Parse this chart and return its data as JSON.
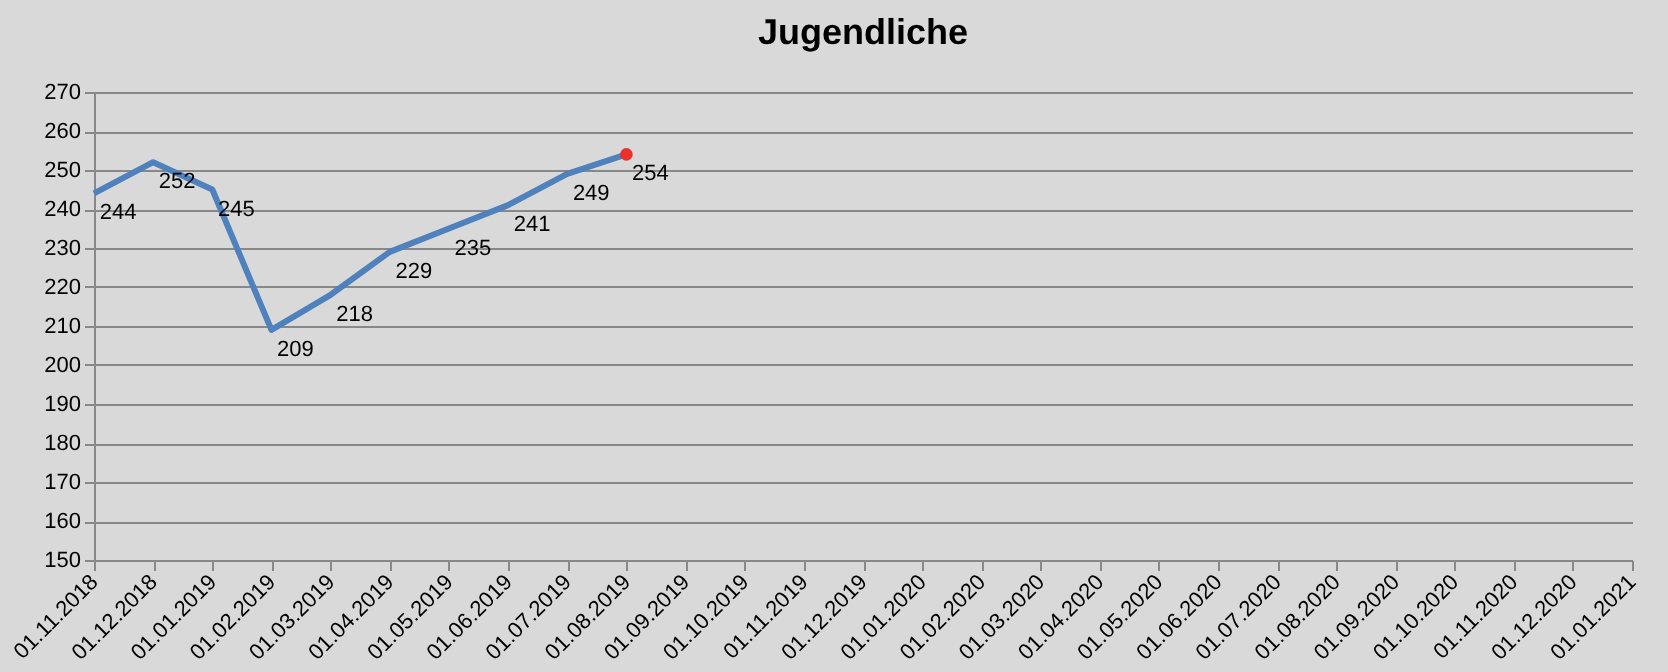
{
  "chart_data": {
    "type": "line",
    "title": "Jugendliche",
    "categories": [
      "01.11.2018",
      "01.12.2018",
      "01.01.2019",
      "01.02.2019",
      "01.03.2019",
      "01.04.2019",
      "01.05.2019",
      "01.06.2019",
      "01.07.2019",
      "01.08.2019",
      "01.09.2019",
      "01.10.2019",
      "01.11.2019",
      "01.12.2019",
      "01.01.2020",
      "01.02.2020",
      "01.03.2020",
      "01.04.2020",
      "01.05.2020",
      "01.06.2020",
      "01.07.2020",
      "01.08.2020",
      "01.09.2020",
      "01.10.2020",
      "01.11.2020",
      "01.12.2020",
      "01.01.2021"
    ],
    "series": [
      {
        "color": "#4f81bd",
        "marker": "none",
        "data_labels": true,
        "values": [
          244,
          252,
          245,
          209,
          218,
          229,
          235,
          241,
          249,
          254,
          null,
          null,
          null,
          null,
          null,
          null,
          null,
          null,
          null,
          null,
          null,
          null,
          null,
          null,
          null,
          null,
          null
        ]
      },
      {
        "type": "scatter",
        "color": "#e8322b",
        "marker": "circle",
        "values": [
          null,
          null,
          null,
          null,
          null,
          null,
          null,
          null,
          null,
          254,
          null,
          null,
          null,
          null,
          null,
          null,
          null,
          null,
          null,
          null,
          null,
          null,
          null,
          null,
          null,
          null,
          null
        ]
      }
    ],
    "ylim": [
      150,
      270
    ],
    "yticks": [
      150,
      160,
      170,
      180,
      190,
      200,
      210,
      220,
      230,
      240,
      250,
      260,
      270
    ],
    "grid": "y"
  }
}
